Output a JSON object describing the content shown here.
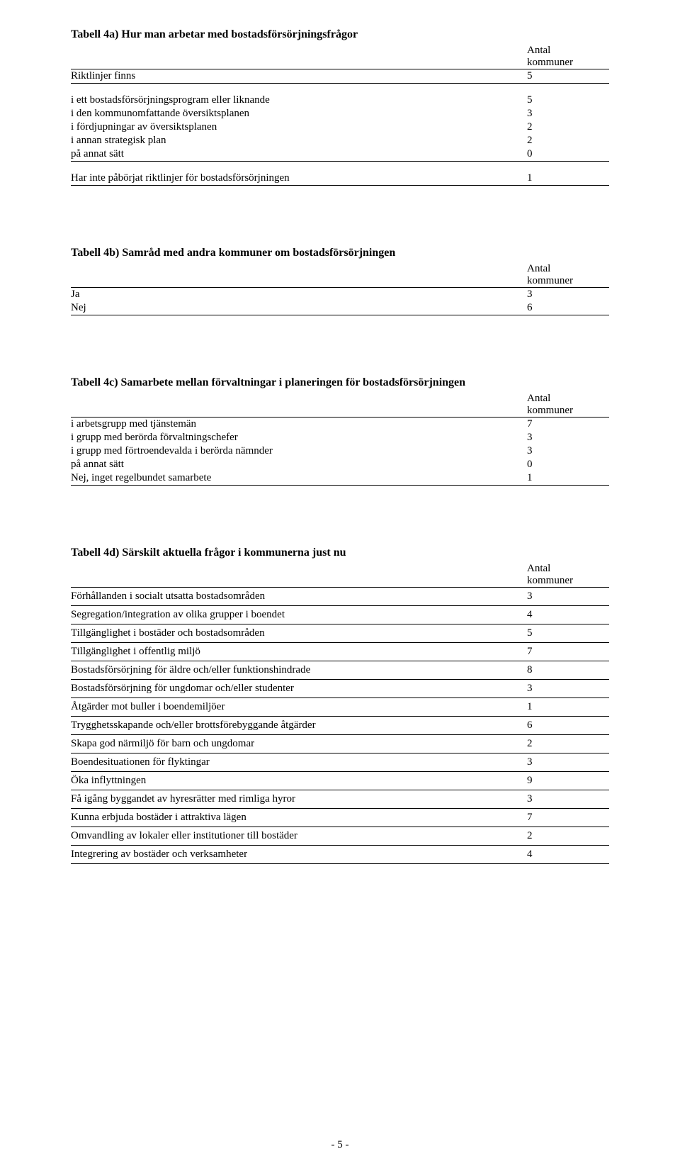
{
  "colors": {
    "text": "#000000",
    "background": "#ffffff",
    "rule": "#000000"
  },
  "typography": {
    "body_family": "Times New Roman",
    "body_size_pt": 12,
    "title_size_pt": 12,
    "title_weight": "bold"
  },
  "common": {
    "header_label_line1": "Antal",
    "header_label_line2": "kommuner"
  },
  "table4a": {
    "title": "Tabell 4a) Hur man arbetar med bostadsförsörjningsfrågor",
    "group1": [
      {
        "label": "Riktlinjer finns",
        "value": 5
      }
    ],
    "group2": [
      {
        "label": "i ett bostadsförsörjningsprogram eller liknande",
        "value": 5
      },
      {
        "label": "i den kommunomfattande översiktsplanen",
        "value": 3
      },
      {
        "label": "i fördjupningar av översiktsplanen",
        "value": 2
      },
      {
        "label": "i annan strategisk plan",
        "value": 2
      },
      {
        "label": "på annat sätt",
        "value": 0
      }
    ],
    "group3": [
      {
        "label": "Har inte påbörjat riktlinjer för bostadsförsörjningen",
        "value": 1
      }
    ]
  },
  "table4b": {
    "title": "Tabell 4b) Samråd med andra kommuner om bostadsförsörjningen",
    "rows": [
      {
        "label": "Ja",
        "value": 3
      },
      {
        "label": "Nej",
        "value": 6
      }
    ]
  },
  "table4c": {
    "title": "Tabell 4c) Samarbete mellan förvaltningar i planeringen för bostadsförsörjningen",
    "rows": [
      {
        "label": "i arbetsgrupp med tjänstemän",
        "value": 7
      },
      {
        "label": "i grupp med berörda förvaltningschefer",
        "value": 3
      },
      {
        "label": "i grupp med förtroendevalda i berörda nämnder",
        "value": 3
      },
      {
        "label": "på annat sätt",
        "value": 0
      },
      {
        "label": "Nej, inget regelbundet samarbete",
        "value": 1
      }
    ]
  },
  "table4d": {
    "title": "Tabell 4d) Särskilt aktuella frågor i kommunerna just nu",
    "rows": [
      {
        "label": "Förhållanden i socialt utsatta bostadsområden",
        "value": 3
      },
      {
        "label": "Segregation/integration av olika grupper i boendet",
        "value": 4
      },
      {
        "label": "Tillgänglighet i bostäder och bostadsområden",
        "value": 5
      },
      {
        "label": "Tillgänglighet i offentlig miljö",
        "value": 7
      },
      {
        "label": "Bostadsförsörjning för äldre och/eller funktionshindrade",
        "value": 8
      },
      {
        "label": "Bostadsförsörjning för ungdomar och/eller studenter",
        "value": 3
      },
      {
        "label": "Åtgärder mot buller i boendemiljöer",
        "value": 1
      },
      {
        "label": "Trygghetsskapande och/eller brottsförebyggande åtgärder",
        "value": 6
      },
      {
        "label": "Skapa god närmiljö för barn och ungdomar",
        "value": 2
      },
      {
        "label": "Boendesituationen för flyktingar",
        "value": 3
      },
      {
        "label": "Öka inflyttningen",
        "value": 9
      },
      {
        "label": "Få igång byggandet av hyresrätter med rimliga hyror",
        "value": 3
      },
      {
        "label": "Kunna erbjuda bostäder i attraktiva lägen",
        "value": 7
      },
      {
        "label": "Omvandling av lokaler eller institutioner till bostäder",
        "value": 2
      },
      {
        "label": "Integrering av bostäder och verksamheter",
        "value": 4
      }
    ]
  },
  "page_number": "- 5 -"
}
